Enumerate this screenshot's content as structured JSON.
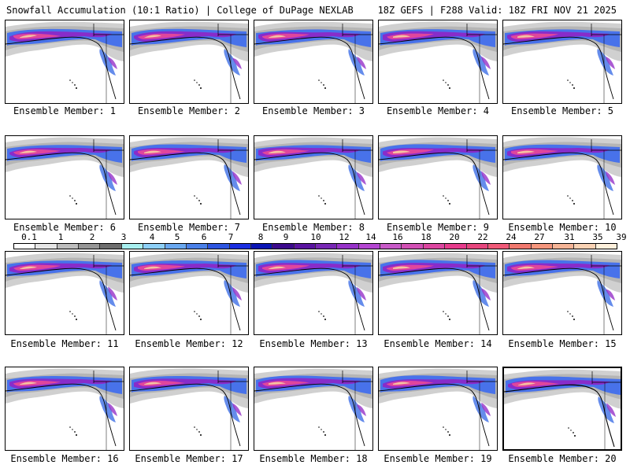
{
  "header": {
    "left": "Snowfall Accumulation (10:1 Ratio) | College of DuPage NEXLAB",
    "right": "18Z GEFS | F288 Valid: 18Z FRI NOV 21 2025"
  },
  "panels": [
    {
      "label": "Ensemble Member: 1"
    },
    {
      "label": "Ensemble Member: 2"
    },
    {
      "label": "Ensemble Member: 3"
    },
    {
      "label": "Ensemble Member: 4"
    },
    {
      "label": "Ensemble Member: 5"
    },
    {
      "label": "Ensemble Member: 6"
    },
    {
      "label": "Ensemble Member: 7"
    },
    {
      "label": "Ensemble Member: 8"
    },
    {
      "label": "Ensemble Member: 9"
    },
    {
      "label": "Ensemble Member: 10"
    },
    {
      "label": "Ensemble Member: 11"
    },
    {
      "label": "Ensemble Member: 12"
    },
    {
      "label": "Ensemble Member: 13"
    },
    {
      "label": "Ensemble Member: 14"
    },
    {
      "label": "Ensemble Member: 15"
    },
    {
      "label": "Ensemble Member: 16"
    },
    {
      "label": "Ensemble Member: 17"
    },
    {
      "label": "Ensemble Member: 18"
    },
    {
      "label": "Ensemble Member: 19"
    },
    {
      "label": "Ensemble Member: 20"
    }
  ],
  "colorbar": {
    "labels": [
      "0.1",
      "1",
      "2",
      "3",
      "4",
      "5",
      "6",
      "7",
      "8",
      "9",
      "10",
      "12",
      "14",
      "16",
      "18",
      "20",
      "22",
      "24",
      "27",
      "31",
      "35",
      "39"
    ],
    "colors": [
      "#ffffff",
      "#e6e6e6",
      "#bdbdbd",
      "#969696",
      "#6e6e6e",
      "#a8f0f0",
      "#8ed0f8",
      "#6aa8f0",
      "#4a80e8",
      "#2d55e0",
      "#1a2ee0",
      "#0a14b4",
      "#3c0a8c",
      "#5a14a0",
      "#7828b4",
      "#9632c8",
      "#b446d2",
      "#c85ac8",
      "#d250b4",
      "#dc46a0",
      "#e63c8c",
      "#e6467d",
      "#f05a78",
      "#f0786e",
      "#f5967d",
      "#f5b496",
      "#fad2b4",
      "#fff0dc"
    ]
  }
}
